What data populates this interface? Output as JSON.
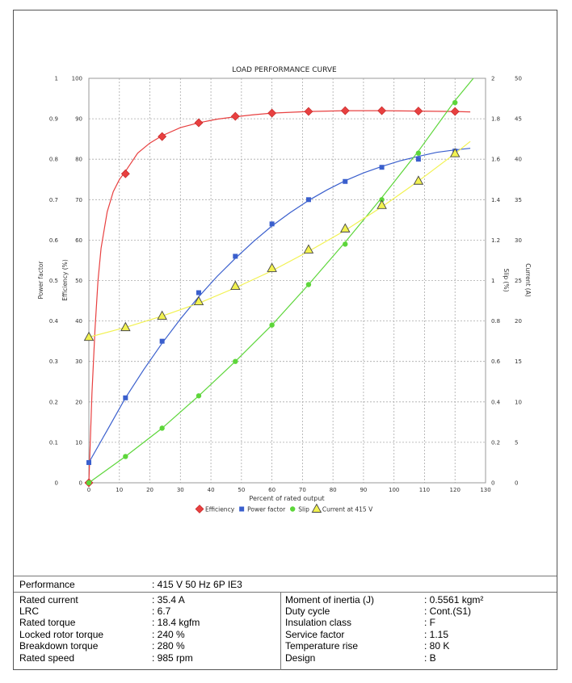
{
  "chart_data": {
    "type": "line",
    "title": "LOAD PERFORMANCE CURVE",
    "xlabel": "Percent of rated output",
    "xlim": [
      0,
      130
    ],
    "xticks": [
      "0",
      "10",
      "20",
      "30",
      "40",
      "50",
      "60",
      "70",
      "80",
      "90",
      "100",
      "110",
      "120",
      "130"
    ],
    "axes": {
      "power_factor": {
        "label": "Power factor",
        "lim": [
          0,
          1
        ],
        "ticks": [
          "0",
          "0.1",
          "0.2",
          "0.3",
          "0.4",
          "0.5",
          "0.6",
          "0.7",
          "0.8",
          "0.9",
          "1"
        ]
      },
      "efficiency": {
        "label": "Efficiency (%)",
        "lim": [
          0,
          100
        ],
        "ticks": [
          "0",
          "10",
          "20",
          "30",
          "40",
          "50",
          "60",
          "70",
          "80",
          "90",
          "100"
        ]
      },
      "slip": {
        "label": "Slip (%)",
        "lim": [
          0,
          2
        ],
        "ticks": [
          "0",
          "0.2",
          "0.4",
          "0.6",
          "0.8",
          "1",
          "1.2",
          "1.4",
          "1.6",
          "1.8",
          "2"
        ]
      },
      "current": {
        "label": "Current (A)",
        "lim": [
          0,
          50
        ],
        "ticks": [
          "0",
          "5",
          "10",
          "15",
          "20",
          "25",
          "30",
          "35",
          "40",
          "45",
          "50"
        ]
      }
    },
    "grid": true,
    "legend": "bottom",
    "series": [
      {
        "name": "Efficiency",
        "axis": "efficiency",
        "color": "#e84040",
        "marker": "diamond",
        "x": [
          0,
          12,
          24,
          36,
          48,
          60,
          72,
          84,
          96,
          108,
          120
        ],
        "y": [
          0,
          76.4,
          85.6,
          89.0,
          90.6,
          91.4,
          91.8,
          92.0,
          92.0,
          91.9,
          91.8
        ],
        "curve_x": [
          0,
          1,
          2,
          3,
          4,
          6,
          8,
          10,
          12,
          16,
          20,
          24,
          30,
          36,
          42,
          48,
          54,
          60,
          72,
          84,
          96,
          108,
          120,
          125
        ],
        "curve_y": [
          0,
          22,
          38,
          50,
          58,
          67,
          72,
          75,
          77,
          81.5,
          84,
          85.8,
          87.8,
          89.0,
          89.9,
          90.5,
          91.0,
          91.4,
          91.8,
          92.0,
          92.0,
          91.9,
          91.8,
          91.7
        ]
      },
      {
        "name": "Power factor",
        "axis": "power_factor",
        "color": "#3a5fcd",
        "marker": "square",
        "x": [
          0,
          12,
          24,
          36,
          48,
          60,
          72,
          84,
          96,
          108,
          120
        ],
        "y": [
          0.05,
          0.21,
          0.35,
          0.47,
          0.56,
          0.64,
          0.7,
          0.745,
          0.78,
          0.8,
          0.82
        ],
        "curve_x": [
          0,
          6,
          12,
          18,
          24,
          30,
          36,
          42,
          48,
          54,
          60,
          66,
          72,
          78,
          84,
          90,
          96,
          102,
          108,
          114,
          120,
          125
        ],
        "curve_y": [
          0.05,
          0.13,
          0.21,
          0.28,
          0.345,
          0.405,
          0.46,
          0.51,
          0.555,
          0.597,
          0.635,
          0.668,
          0.698,
          0.724,
          0.747,
          0.766,
          0.782,
          0.796,
          0.807,
          0.817,
          0.823,
          0.827
        ]
      },
      {
        "name": "Slip",
        "axis": "slip",
        "color": "#5dd63a",
        "marker": "circle",
        "x": [
          0,
          12,
          24,
          36,
          48,
          60,
          72,
          84,
          96,
          108,
          120
        ],
        "y": [
          0,
          0.13,
          0.27,
          0.43,
          0.6,
          0.78,
          0.98,
          1.18,
          1.4,
          1.63,
          1.88
        ],
        "curve_x": [
          0,
          12,
          24,
          36,
          48,
          60,
          72,
          84,
          96,
          108,
          120,
          126
        ],
        "curve_y": [
          0,
          0.13,
          0.27,
          0.43,
          0.6,
          0.78,
          0.98,
          1.19,
          1.41,
          1.64,
          1.89,
          2.0
        ]
      },
      {
        "name": "Current at 415 V",
        "axis": "current",
        "color": "#f2f250",
        "marker": "triangle",
        "x": [
          0,
          12,
          24,
          36,
          48,
          60,
          72,
          84,
          96,
          108,
          120
        ],
        "y": [
          18.0,
          19.2,
          20.6,
          22.4,
          24.3,
          26.5,
          28.8,
          31.4,
          34.3,
          37.3,
          40.7
        ],
        "curve_x": [
          0,
          12,
          24,
          36,
          48,
          60,
          72,
          84,
          96,
          108,
          120,
          125
        ],
        "curve_y": [
          18.0,
          19.2,
          20.6,
          22.2,
          24.1,
          26.2,
          28.6,
          31.2,
          34.1,
          37.3,
          40.7,
          42.2
        ]
      }
    ]
  },
  "table": {
    "header": {
      "label": "Performance",
      "value": ": 415 V 50 Hz 6P IE3"
    },
    "left": [
      {
        "label": "Rated current",
        "value": ": 35.4 A"
      },
      {
        "label": "LRC",
        "value": ": 6.7"
      },
      {
        "label": "Rated torque",
        "value": ": 18.4 kgfm"
      },
      {
        "label": "Locked rotor torque",
        "value": ": 240 %"
      },
      {
        "label": "Breakdown torque",
        "value": ": 280 %"
      },
      {
        "label": "Rated speed",
        "value": ": 985 rpm"
      }
    ],
    "right": [
      {
        "label": "Moment of inertia (J)",
        "value": ": 0.5561 kgm²"
      },
      {
        "label": "Duty cycle",
        "value": ": Cont.(S1)"
      },
      {
        "label": "Insulation class",
        "value": ": F"
      },
      {
        "label": "Service factor",
        "value": ": 1.15"
      },
      {
        "label": "Temperature rise",
        "value": ": 80 K"
      },
      {
        "label": "Design",
        "value": ": B"
      }
    ]
  }
}
